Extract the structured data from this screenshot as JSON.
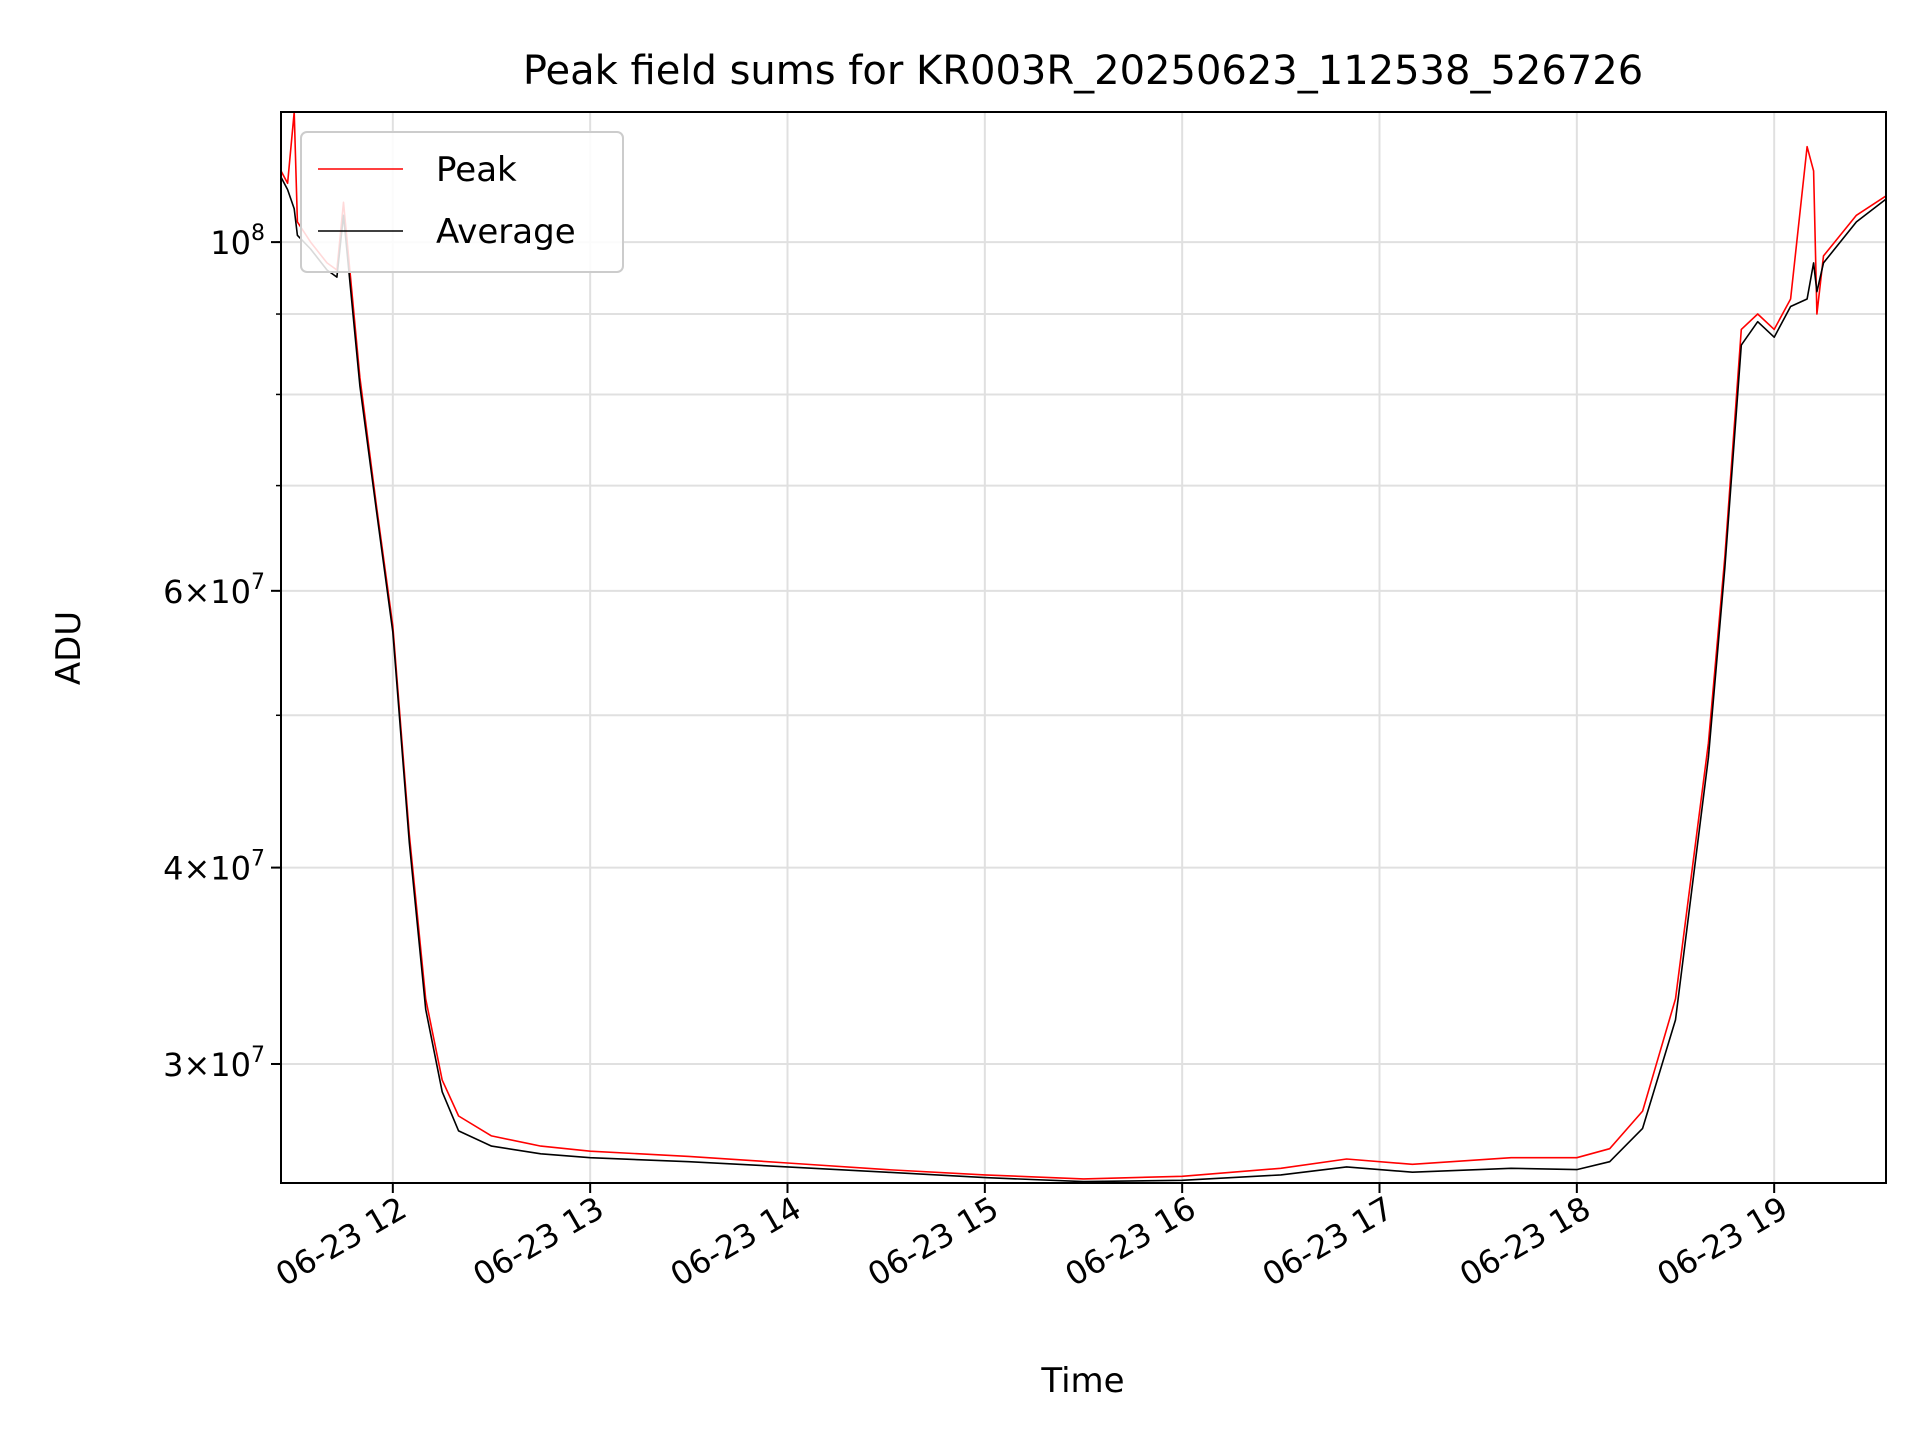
{
  "chart_data": {
    "type": "line",
    "title": "Peak field sums for KR003R_20250623_112538_526726",
    "xlabel": "Time",
    "ylabel": "ADU",
    "y_scale": "log",
    "xlim": [
      "2025-06-23 11:26",
      "2025-06-23 19:34"
    ],
    "ylim": [
      25200000,
      121000000
    ],
    "grid": true,
    "legend_position": "upper left",
    "x_ticks": [
      "06-23 12",
      "06-23 13",
      "06-23 14",
      "06-23 15",
      "06-23 16",
      "06-23 17",
      "06-23 18",
      "06-23 19"
    ],
    "y_ticks": [
      {
        "base": "10",
        "exp": "8",
        "coef": ""
      },
      {
        "base": "10",
        "exp": "7",
        "coef": "6"
      },
      {
        "base": "10",
        "exp": "7",
        "coef": "4"
      },
      {
        "base": "10",
        "exp": "7",
        "coef": "3"
      }
    ],
    "series": [
      {
        "name": "Peak",
        "color": "#ff0000",
        "points": [
          [
            "11:26",
            111000000
          ],
          [
            "11:28",
            109000000
          ],
          [
            "11:30",
            121000000
          ],
          [
            "11:31",
            103000000
          ],
          [
            "11:35",
            100000000
          ],
          [
            "11:40",
            97000000
          ],
          [
            "11:43",
            96000000
          ],
          [
            "11:45",
            106000000
          ],
          [
            "11:50",
            82000000
          ],
          [
            "11:55",
            68000000
          ],
          [
            "12:00",
            57000000
          ],
          [
            "12:05",
            42000000
          ],
          [
            "12:10",
            33000000
          ],
          [
            "12:15",
            29300000
          ],
          [
            "12:20",
            27800000
          ],
          [
            "12:30",
            27000000
          ],
          [
            "12:45",
            26600000
          ],
          [
            "13:00",
            26400000
          ],
          [
            "13:30",
            26200000
          ],
          [
            "14:00",
            25950000
          ],
          [
            "14:30",
            25700000
          ],
          [
            "15:00",
            25500000
          ],
          [
            "15:30",
            25350000
          ],
          [
            "16:00",
            25450000
          ],
          [
            "16:30",
            25750000
          ],
          [
            "16:50",
            26100000
          ],
          [
            "17:10",
            25900000
          ],
          [
            "17:40",
            26150000
          ],
          [
            "18:00",
            26150000
          ],
          [
            "18:10",
            26500000
          ],
          [
            "18:20",
            28000000
          ],
          [
            "18:30",
            33000000
          ],
          [
            "18:40",
            48000000
          ],
          [
            "18:45",
            63000000
          ],
          [
            "18:50",
            88000000
          ],
          [
            "18:55",
            90000000
          ],
          [
            "19:00",
            88000000
          ],
          [
            "19:05",
            92000000
          ],
          [
            "19:10",
            115000000
          ],
          [
            "19:12",
            111000000
          ],
          [
            "19:13",
            90000000
          ],
          [
            "19:15",
            98000000
          ],
          [
            "19:25",
            104000000
          ],
          [
            "19:34",
            107000000
          ]
        ]
      },
      {
        "name": "Average",
        "color": "#000000",
        "points": [
          [
            "11:26",
            110000000
          ],
          [
            "11:28",
            108000000
          ],
          [
            "11:30",
            105000000
          ],
          [
            "11:31",
            101000000
          ],
          [
            "11:35",
            99000000
          ],
          [
            "11:40",
            96000000
          ],
          [
            "11:43",
            95000000
          ],
          [
            "11:45",
            104000000
          ],
          [
            "11:50",
            81000000
          ],
          [
            "11:55",
            67500000
          ],
          [
            "12:00",
            56500000
          ],
          [
            "12:05",
            41500000
          ],
          [
            "12:10",
            32500000
          ],
          [
            "12:15",
            28800000
          ],
          [
            "12:20",
            27200000
          ],
          [
            "12:30",
            26600000
          ],
          [
            "12:45",
            26300000
          ],
          [
            "13:00",
            26150000
          ],
          [
            "13:30",
            26000000
          ],
          [
            "14:00",
            25800000
          ],
          [
            "14:30",
            25600000
          ],
          [
            "15:00",
            25400000
          ],
          [
            "15:30",
            25250000
          ],
          [
            "16:00",
            25300000
          ],
          [
            "16:30",
            25500000
          ],
          [
            "16:50",
            25800000
          ],
          [
            "17:10",
            25600000
          ],
          [
            "17:40",
            25750000
          ],
          [
            "18:00",
            25700000
          ],
          [
            "18:10",
            26000000
          ],
          [
            "18:20",
            27300000
          ],
          [
            "18:30",
            32000000
          ],
          [
            "18:40",
            47000000
          ],
          [
            "18:45",
            62000000
          ],
          [
            "18:50",
            86000000
          ],
          [
            "18:55",
            89000000
          ],
          [
            "19:00",
            87000000
          ],
          [
            "19:05",
            91000000
          ],
          [
            "19:10",
            92000000
          ],
          [
            "19:12",
            97000000
          ],
          [
            "19:13",
            93000000
          ],
          [
            "19:15",
            97000000
          ],
          [
            "19:25",
            103000000
          ],
          [
            "19:34",
            106500000
          ]
        ]
      }
    ]
  }
}
